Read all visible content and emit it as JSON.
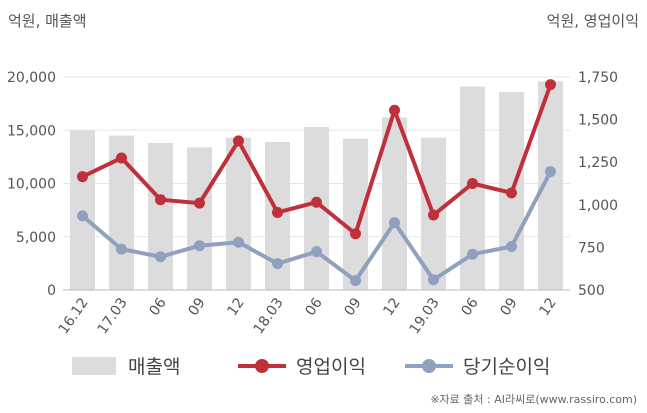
{
  "units": {
    "left": "억원, 매출액",
    "right": "억원, 영업이익"
  },
  "legend": {
    "sales": "매출액",
    "op": "영업이익",
    "net": "당기순이익"
  },
  "source": "※자료 출처 : AI라씨로(www.rassiro.com)",
  "colors": {
    "bar": "#dcdcdc",
    "op": "#c0303a",
    "net": "#8fa1bf",
    "axis": "#555555",
    "grid": "#e6e6e6"
  },
  "chart_data": {
    "type": "bar",
    "categories": [
      "16.12",
      "17.03",
      "06",
      "09",
      "12",
      "18.03",
      "06",
      "09",
      "12",
      "19.03",
      "06",
      "09",
      "12"
    ],
    "y_left": {
      "ticks": [
        "0",
        "5,000",
        "10,000",
        "15,000",
        "20,000"
      ],
      "range": [
        0,
        20000
      ]
    },
    "y_right": {
      "ticks": [
        "500",
        "750",
        "1,000",
        "1,250",
        "1,500",
        "1,750"
      ],
      "range": [
        500,
        1750
      ]
    },
    "series": [
      {
        "name": "매출액",
        "type": "bar",
        "axis": "left",
        "values": [
          15000,
          14500,
          13800,
          13400,
          14300,
          13900,
          15300,
          14200,
          16200,
          14300,
          19100,
          18600,
          19600
        ]
      },
      {
        "name": "영업이익",
        "type": "line",
        "axis": "right",
        "values": [
          1165,
          1275,
          1030,
          1010,
          1375,
          955,
          1015,
          830,
          1555,
          940,
          1125,
          1070,
          1705
        ]
      },
      {
        "name": "당기순이익",
        "type": "line",
        "axis": "right",
        "values": [
          935,
          740,
          695,
          760,
          780,
          655,
          725,
          555,
          895,
          560,
          710,
          755,
          1195
        ]
      }
    ]
  }
}
